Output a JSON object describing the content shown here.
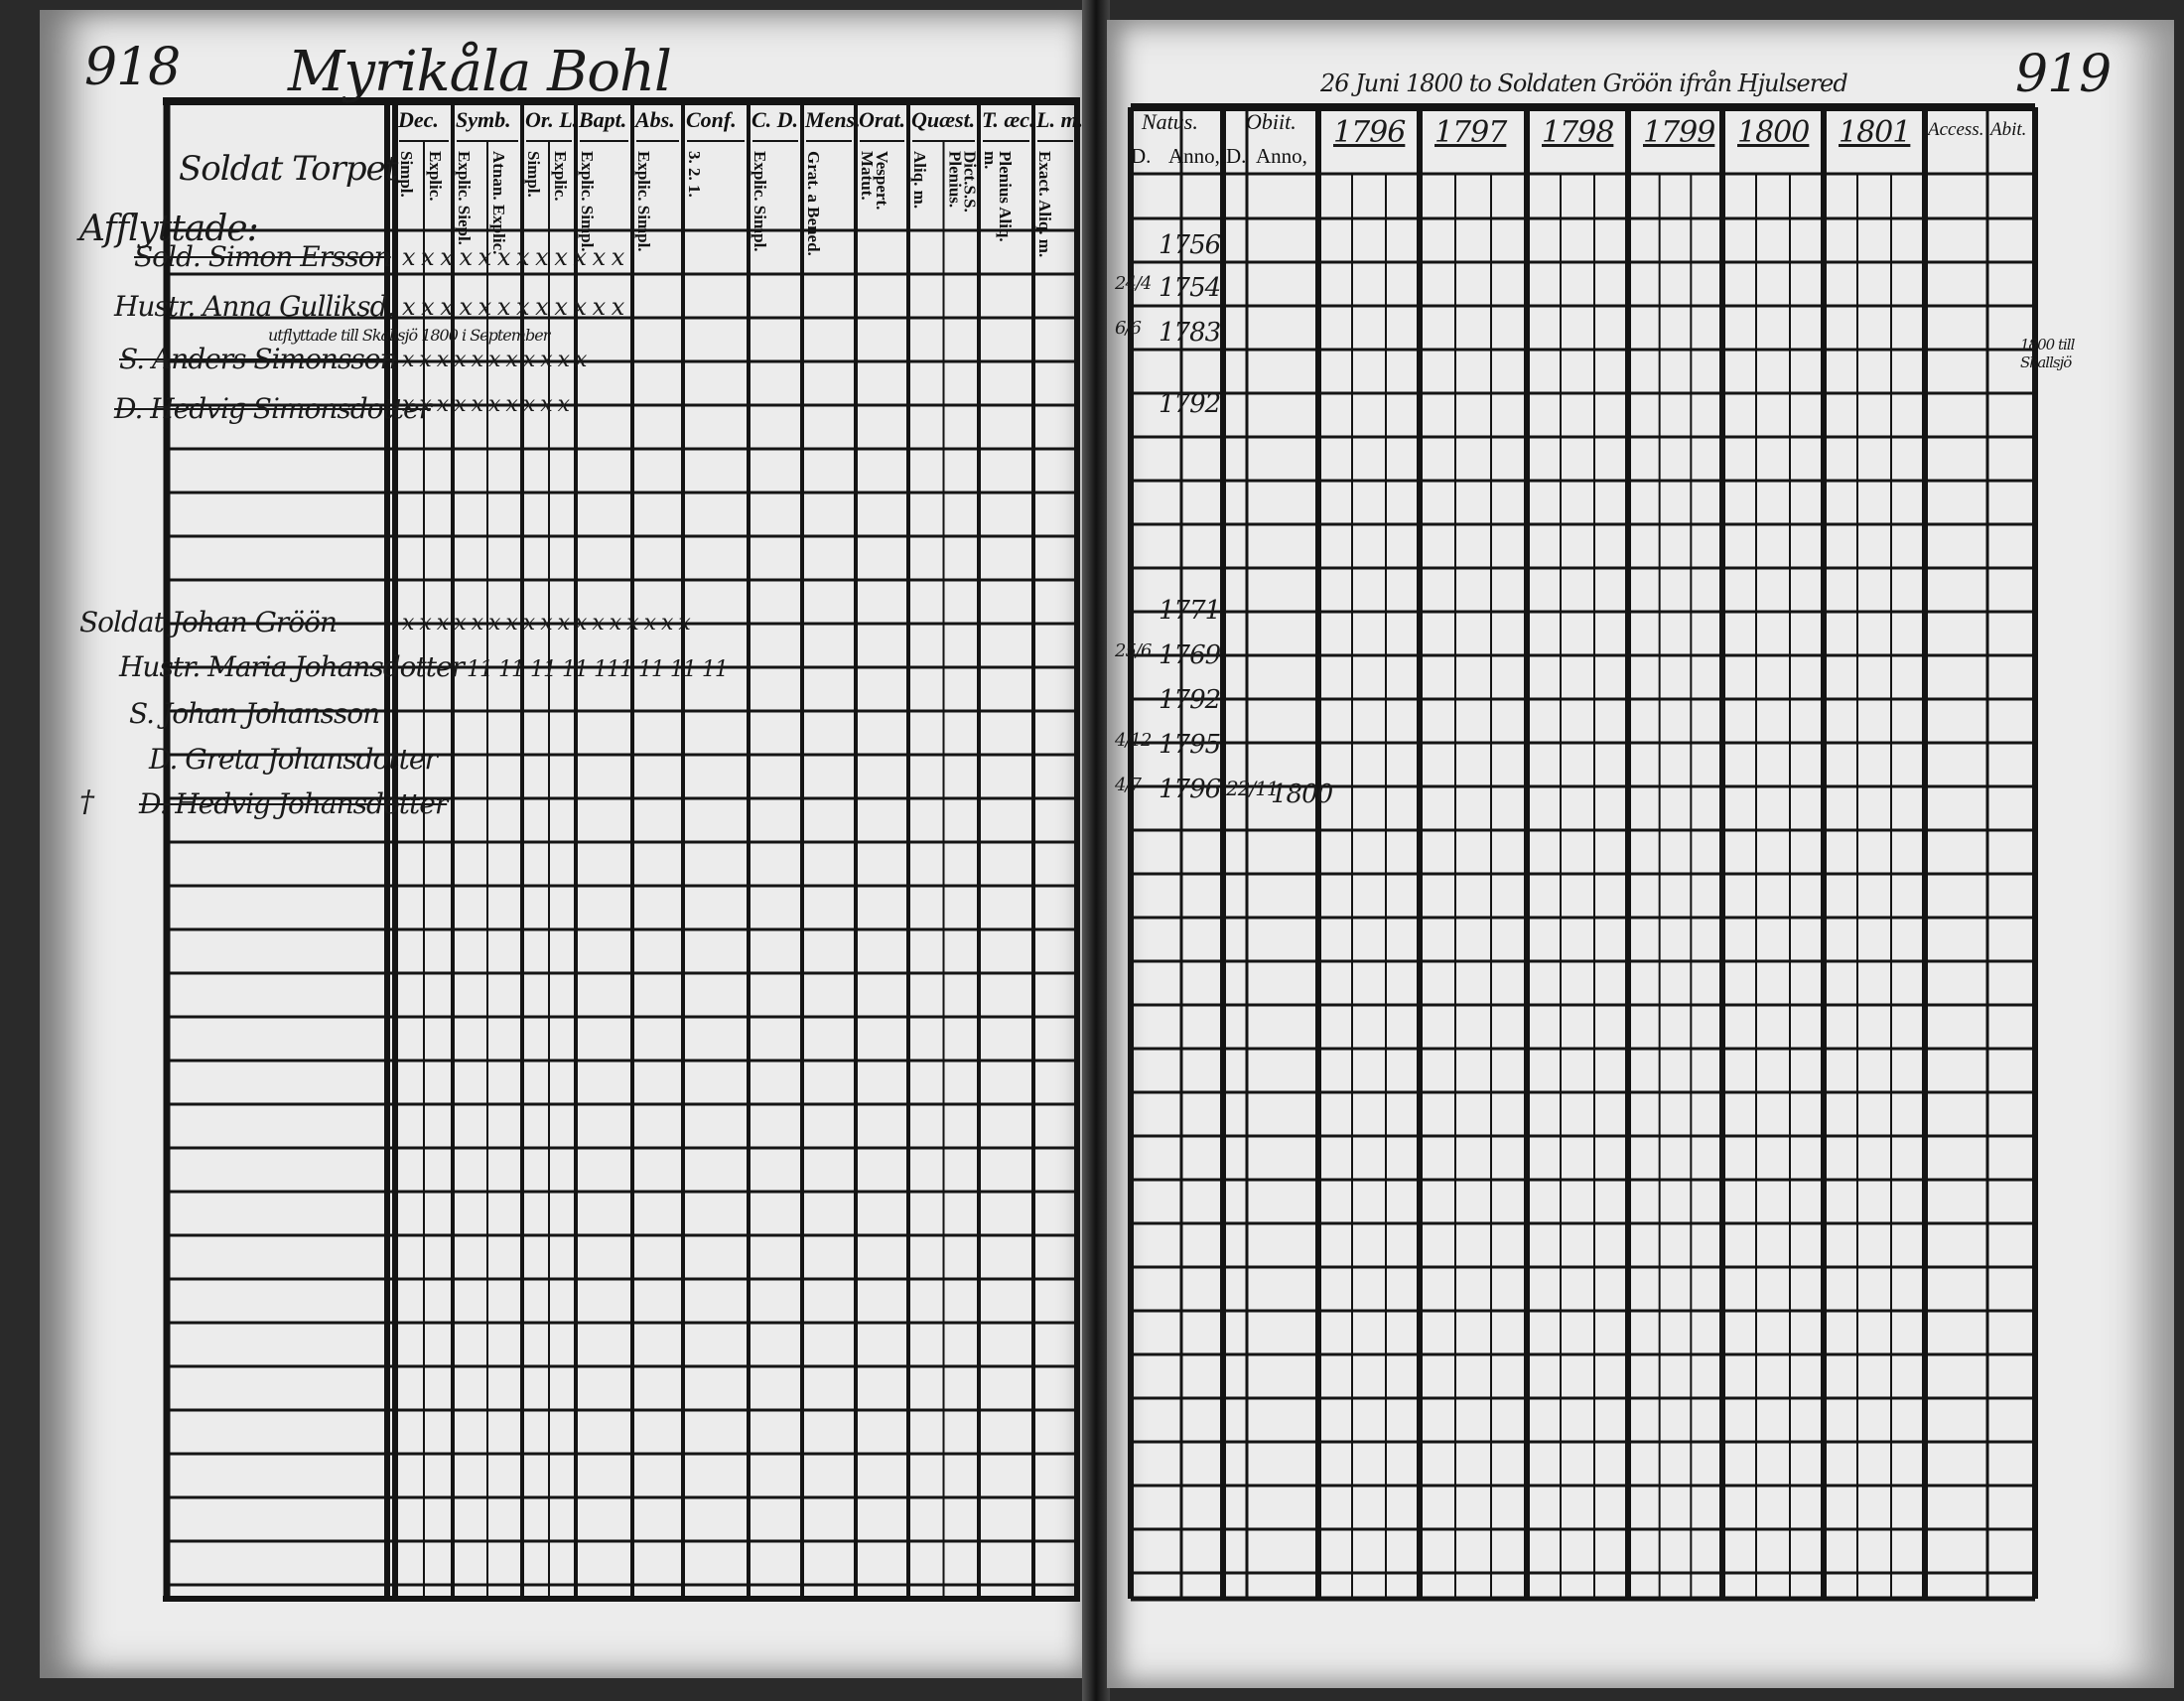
{
  "left_page": {
    "page_number": "918",
    "heading": "Myrikåla Bohl",
    "section": "Soldat Torpet",
    "group_headers": [
      "Dec.",
      "Symb.",
      "Or. L.",
      "Bapt.",
      "Abs.",
      "Conf.",
      "C. D.",
      "Mens.",
      "Orat.",
      "Quæst.",
      "T. æc.",
      "L. m."
    ],
    "sub_headers": [
      [
        "Simpl.",
        "Explic."
      ],
      [
        "Explic. Siepl.",
        "Atnan. Explic."
      ],
      [
        "Simpl.",
        "Explic."
      ],
      [
        "Explic. Simpl."
      ],
      [
        "Explic. Simpl."
      ],
      [
        "3. 2. 1."
      ],
      [
        "Explic. Simpl."
      ],
      [
        "Grat. a Bened."
      ],
      [
        "Vespert. Matut."
      ],
      [
        "Aliq. m.",
        "Dict.S.S. Plenius."
      ],
      [
        "Plenius Aliq. m."
      ],
      [
        "Exact. Aliq. m."
      ]
    ],
    "household_1": {
      "label": "Afflyttade:",
      "members": [
        "Sold. Simon Ersson",
        "Hustr. Anna Gulliksd.",
        "S. Anders Simonsson",
        "D. Hedvig Simonsdotter"
      ],
      "note": "utflyttade till Skallsjö 1800 i September",
      "marks": [
        "x x x x x x x x x x x x",
        "x x x x x x x x x x x x",
        "x x x x x x x x x x x",
        "x x x x x x x x x x"
      ]
    },
    "household_2": {
      "members": [
        "Soldat Johan Gröön",
        "Hustr. Maria Johansdotter",
        "S. Johan Johansson",
        "D. Greta Johansdotter",
        "D. Hedvig Johansdotter"
      ],
      "death_mark": "†",
      "marks": [
        "x x x x x x x x x x x x x x x x x",
        "11  11  11  11  111  11  11  11"
      ]
    }
  },
  "right_page": {
    "page_number": "919",
    "top_note": "26 Juni 1800 to Soldaten Gröön ifrån Hjulsered",
    "headers": {
      "natus": "Natus.",
      "obiit": "Obiit.",
      "d": "D.",
      "anno": "Anno,",
      "years": [
        "1796",
        "1797",
        "1798",
        "1799",
        "1800",
        "1801"
      ],
      "access": "Access.",
      "abit": "Abit."
    },
    "entries": [
      {
        "day": "",
        "year": "1756"
      },
      {
        "day": "24/4",
        "year": "1754"
      },
      {
        "day": "6/6",
        "year": "1783"
      },
      {
        "day": "",
        "year": "1792"
      },
      {
        "day": "",
        "year": "1771"
      },
      {
        "day": "25/6",
        "year": "1769"
      },
      {
        "day": "",
        "year": "1792"
      },
      {
        "day": "4/12",
        "year": "1795"
      },
      {
        "day": "4/7",
        "year": "1796"
      }
    ],
    "obiit_entry": {
      "day": "22/11",
      "year": "1800"
    },
    "abit_note": "1800 till Skallsjö"
  }
}
